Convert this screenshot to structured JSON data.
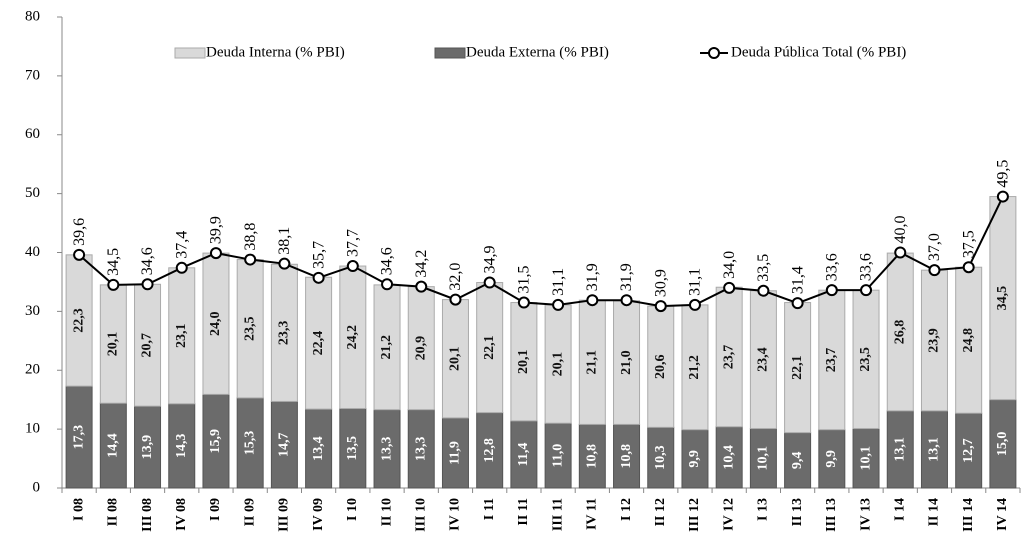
{
  "chart_data": {
    "type": "bar",
    "stacked": true,
    "legend": "top",
    "categories": [
      "I 08",
      "II 08",
      "III 08",
      "IV 08",
      "I 09",
      "II 09",
      "III 09",
      "IV 09",
      "I 10",
      "II 10",
      "III 10",
      "IV 10",
      "I 11",
      "II 11",
      "III 11",
      "IV 11",
      "I 12",
      "II 12",
      "III 12",
      "IV 12",
      "I 13",
      "II 13",
      "III 13",
      "IV 13",
      "I 14",
      "II 14",
      "III 14",
      "IV 14"
    ],
    "series": [
      {
        "name": "Deuda Externa (% PBI)",
        "type": "bar",
        "color": "#6b6b6b",
        "values": [
          17.3,
          14.4,
          13.9,
          14.3,
          15.9,
          15.3,
          14.7,
          13.4,
          13.5,
          13.3,
          13.3,
          11.9,
          12.8,
          11.4,
          11.0,
          10.8,
          10.8,
          10.3,
          9.9,
          10.4,
          10.1,
          9.4,
          9.9,
          10.1,
          13.1,
          13.1,
          12.7,
          15.0
        ],
        "value_labels": [
          "17,3",
          "14,4",
          "13,9",
          "14,3",
          "15,9",
          "15,3",
          "14,7",
          "13,4",
          "13,5",
          "13,3",
          "13,3",
          "11,9",
          "12,8",
          "11,4",
          "11,0",
          "10,8",
          "10,8",
          "10,3",
          "9,9",
          "10,4",
          "10,1",
          "9,4",
          "9,9",
          "10,1",
          "13,1",
          "13,1",
          "12,7",
          "15,0"
        ]
      },
      {
        "name": "Deuda Interna (% PBI)",
        "type": "bar",
        "color": "#d9d9d9",
        "values": [
          22.3,
          20.1,
          20.7,
          23.1,
          24.0,
          23.5,
          23.3,
          22.4,
          24.2,
          21.2,
          20.9,
          20.1,
          22.1,
          20.1,
          20.1,
          21.1,
          21.0,
          20.6,
          21.2,
          23.7,
          23.4,
          22.1,
          23.7,
          23.5,
          26.8,
          23.9,
          24.8,
          34.5
        ],
        "value_labels": [
          "22,3",
          "20,1",
          "20,7",
          "23,1",
          "24,0",
          "23,5",
          "23,3",
          "22,4",
          "24,2",
          "21,2",
          "20,9",
          "20,1",
          "22,1",
          "20,1",
          "20,1",
          "21,1",
          "21,0",
          "20,6",
          "21,2",
          "23,7",
          "23,4",
          "22,1",
          "23,7",
          "23,5",
          "26,8",
          "23,9",
          "24,8",
          "34,5"
        ]
      },
      {
        "name": "Deuda Pública Total (% PBI)",
        "type": "line",
        "color": "#000000",
        "values": [
          39.6,
          34.5,
          34.6,
          37.4,
          39.9,
          38.8,
          38.1,
          35.7,
          37.7,
          34.6,
          34.2,
          32.0,
          34.9,
          31.5,
          31.1,
          31.9,
          31.9,
          30.9,
          31.1,
          34.0,
          33.5,
          31.4,
          33.6,
          33.6,
          40.0,
          37.0,
          37.5,
          49.5
        ],
        "value_labels": [
          "39,6",
          "34,5",
          "34,6",
          "37,4",
          "39,9",
          "38,8",
          "38,1",
          "35,7",
          "37,7",
          "34,6",
          "34,2",
          "32,0",
          "34,9",
          "31,5",
          "31,1",
          "31,9",
          "31,9",
          "30,9",
          "31,1",
          "34,0",
          "33,5",
          "31,4",
          "33,6",
          "33,6",
          "40,0",
          "37,0",
          "37,5",
          "49,5"
        ]
      }
    ],
    "ylim": [
      0,
      80
    ],
    "yticks": [
      0,
      10,
      20,
      30,
      40,
      50,
      60,
      70,
      80
    ]
  }
}
